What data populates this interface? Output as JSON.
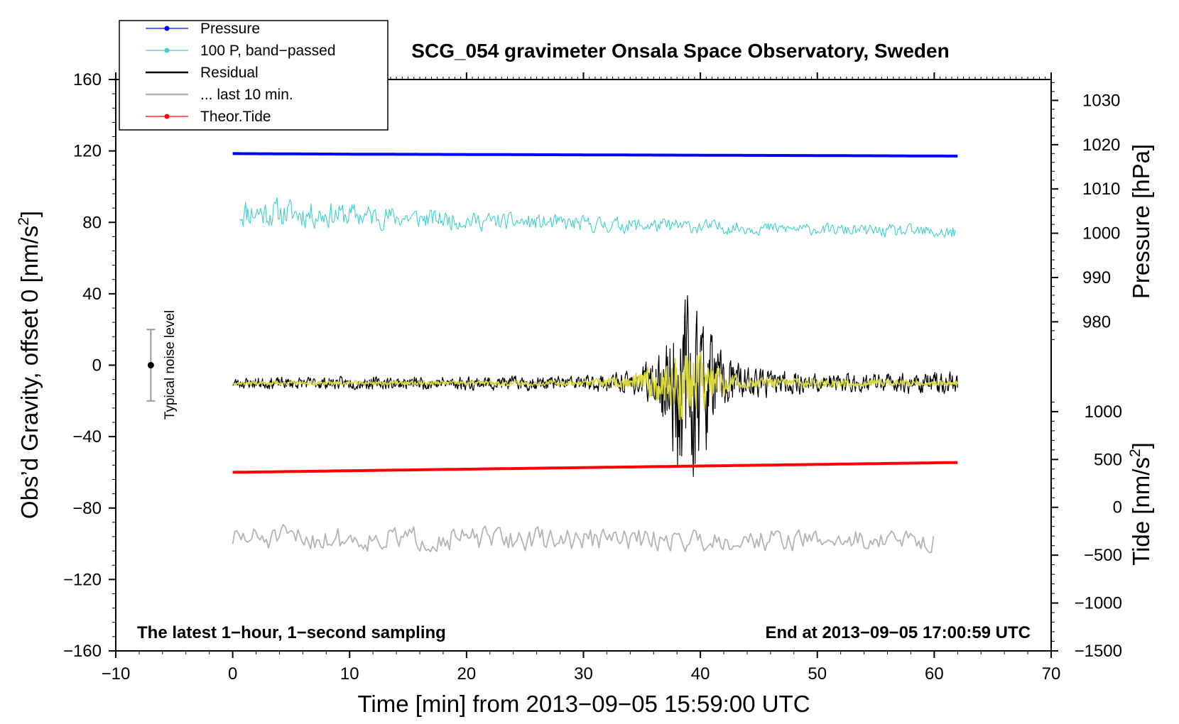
{
  "chart_data": {
    "type": "line",
    "title": "SCG_054 gravimeter Onsala Space Observatory, Sweden",
    "xlabel": "Time [min] from 2013−09−05 15:59:00 UTC",
    "ylabel_left": "Obs’d Gravity, offset 0 [nm/s",
    "ylabel_left_sup": "2",
    "ylabel_left_close": "]",
    "ylabel_pressure": "Pressure [hPa]",
    "ylabel_tide": "Tide [nm/s",
    "ylabel_tide_sup": "2",
    "ylabel_tide_close": "]",
    "xlim": [
      -10,
      70
    ],
    "ylim": [
      -160,
      160
    ],
    "x_ticks": [
      -10,
      0,
      10,
      20,
      30,
      40,
      50,
      60,
      70
    ],
    "x_tick_labels": [
      "−10",
      "0",
      "10",
      "20",
      "30",
      "40",
      "50",
      "60",
      "70"
    ],
    "y_ticks": [
      -160,
      -120,
      -80,
      -40,
      0,
      40,
      80,
      120,
      160
    ],
    "y_tick_labels": [
      "−160",
      "−120",
      "−80",
      "−40",
      "0",
      "40",
      "80",
      "120",
      "160"
    ],
    "pressure_ticks": [
      980,
      990,
      1000,
      1010,
      1020,
      1030
    ],
    "pressure_tick_labels": [
      "980",
      "990",
      "1000",
      "1010",
      "1020",
      "1030"
    ],
    "pressure_mapping": {
      "p1": 980,
      "g1": 24.3,
      "p2": 1030,
      "g2": 148.3
    },
    "tide_ticks": [
      -1500,
      -1000,
      -500,
      0,
      500,
      1000
    ],
    "tide_tick_labels": [
      "−1500",
      "−1000",
      "−500",
      "0",
      "500",
      "1000"
    ],
    "tide_mapping": {
      "t1": -1500,
      "g1": -160,
      "t2": 1000,
      "g2": -26
    },
    "legend_position": "top-left",
    "legend": [
      {
        "label": "Pressure",
        "color": "#0000ff",
        "marker": true
      },
      {
        "label": "100 P, band−passed",
        "color": "#40d0d0",
        "marker": true
      },
      {
        "label": "Residual",
        "color": "#000000",
        "marker": false
      },
      {
        "label": "... last 10 min.",
        "color": "#b4b4b4",
        "marker": false
      },
      {
        "label": "Theor.Tide",
        "color": "#ff0000",
        "marker": true
      }
    ],
    "series": [
      {
        "name": "Pressure",
        "color": "#0000ff",
        "kind": "trend",
        "x": [
          0,
          10,
          20,
          30,
          40,
          50,
          62
        ],
        "y": [
          118.5,
          118.2,
          118.0,
          117.8,
          117.6,
          117.4,
          117.1
        ]
      },
      {
        "name": "100 P, band−passed",
        "color": "#40d0d0",
        "kind": "noise",
        "x_range": [
          0.6,
          61.8
        ],
        "center": [
          [
            0,
            86
          ],
          [
            10,
            84
          ],
          [
            20,
            81
          ],
          [
            30,
            79
          ],
          [
            40,
            77.5
          ],
          [
            50,
            76
          ],
          [
            62,
            74
          ]
        ],
        "amplitude": [
          [
            0,
            9
          ],
          [
            10,
            7
          ],
          [
            20,
            5
          ],
          [
            30,
            4.5
          ],
          [
            40,
            4
          ],
          [
            50,
            3
          ],
          [
            60,
            4
          ],
          [
            62,
            4
          ]
        ]
      },
      {
        "name": "Residual",
        "color": "#000000",
        "kind": "noise",
        "x_range": [
          0,
          62
        ],
        "center": [
          [
            0,
            -10
          ],
          [
            62,
            -10
          ]
        ],
        "amplitude": [
          [
            0,
            3
          ],
          [
            30,
            4
          ],
          [
            34,
            6
          ],
          [
            36.5,
            14
          ],
          [
            38,
            50
          ],
          [
            40,
            45
          ],
          [
            41.5,
            20
          ],
          [
            44,
            8
          ],
          [
            50,
            5
          ],
          [
            62,
            6
          ]
        ]
      },
      {
        "name": "yellow filtered",
        "color": "#d8d83c",
        "kind": "noise",
        "x_range": [
          0,
          62
        ],
        "center": [
          [
            0,
            -10
          ],
          [
            62,
            -10
          ]
        ],
        "amplitude": [
          [
            0,
            1
          ],
          [
            30,
            1.5
          ],
          [
            34,
            4
          ],
          [
            36.5,
            10
          ],
          [
            38,
            22
          ],
          [
            40,
            18
          ],
          [
            41.5,
            8
          ],
          [
            44,
            3
          ],
          [
            62,
            1.5
          ]
        ]
      },
      {
        "name": "... last 10 min.",
        "color": "#b4b4b4",
        "kind": "noise",
        "x_range": [
          0,
          60
        ],
        "center": [
          [
            0,
            -97
          ],
          [
            60,
            -98
          ]
        ],
        "amplitude": [
          [
            0,
            7
          ],
          [
            60,
            6
          ]
        ]
      },
      {
        "name": "Theor.Tide",
        "color": "#ff0000",
        "kind": "trend",
        "x": [
          0,
          62
        ],
        "y": [
          -60,
          -54.5
        ]
      }
    ],
    "noise_bar": {
      "label": "Typical noise level",
      "x": -7,
      "center": 0,
      "low": -20,
      "high": 20
    },
    "annotations": {
      "left": "The latest 1−hour, 1−second sampling",
      "right": "End at 2013−09−05 17:00:59 UTC"
    }
  }
}
